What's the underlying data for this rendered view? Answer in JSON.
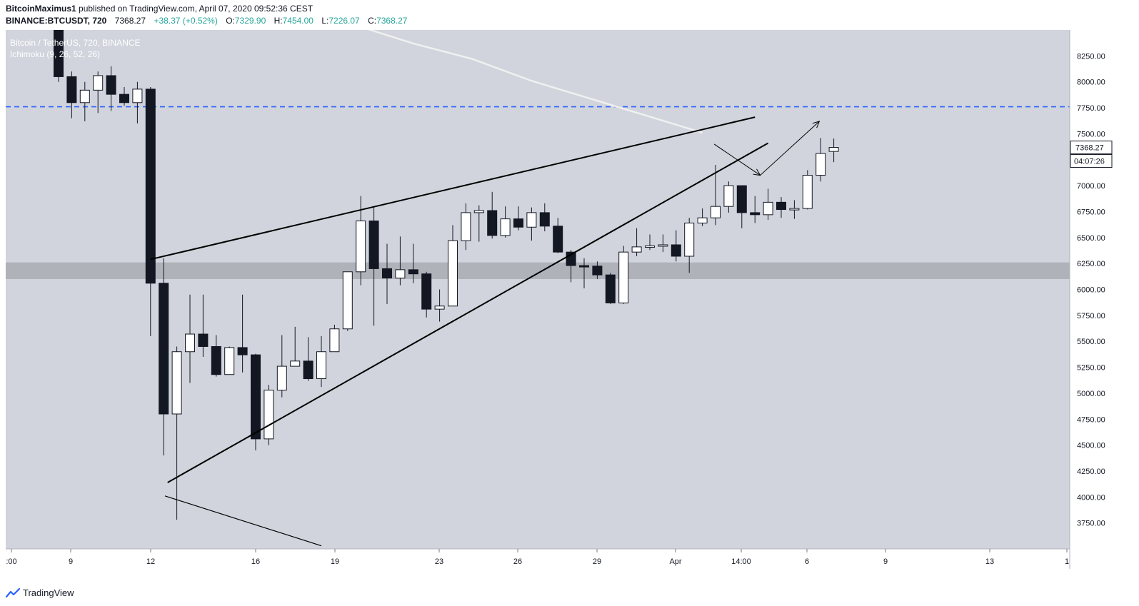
{
  "header": {
    "author": "BitcoinMaximus1",
    "published_text": "published on TradingView.com, April 07, 2020 09:52:36 CEST",
    "symbol": "BINANCE:BTCUSDT, 720",
    "last": "7368.27",
    "change": "+38.37 (+0.52%)",
    "o_label": "O:",
    "o_value": "7329.90",
    "h_label": "H:",
    "h_value": "7454.00",
    "l_label": "L:",
    "l_value": "7226.07",
    "c_label": "C:",
    "c_value": "7368.27"
  },
  "overlay": {
    "series_title": "Bitcoin / TetherUS, 720, BINANCE",
    "indicator": "Ichimoku (9, 26, 52, 26)"
  },
  "footer": {
    "brand": "TradingView"
  },
  "chart_data": {
    "type": "candlestick",
    "y_range": [
      3500,
      8500
    ],
    "y_ticks": [
      "8250.00",
      "8000.00",
      "7750.00",
      "7500.00",
      "7250.00",
      "7000.00",
      "6750.00",
      "6500.00",
      "6250.00",
      "6000.00",
      "5750.00",
      "5500.00",
      "5250.00",
      "5000.00",
      "4750.00",
      "4500.00",
      "4250.00",
      "4000.00",
      "3750.00"
    ],
    "x_tick_labels": [
      ":00",
      "9",
      "12",
      "16",
      "19",
      "23",
      "26",
      "29",
      "Apr",
      "14:00",
      "6",
      "9",
      "13",
      "1"
    ],
    "price_label": "7368.27",
    "countdown_label": "04:07:26",
    "colors": {
      "background": "#d1d4dc",
      "up": "#ffffff",
      "down": "#131722",
      "dashed": "#2962ff",
      "zone": "#a9abb3",
      "ma": "#f0f0f0",
      "accent": "#26a69a"
    },
    "resistance_dashed": 7760,
    "support_zone": [
      6100,
      6260
    ],
    "candles": [
      {
        "o": 8700,
        "h": 8800,
        "l": 8000,
        "c": 8050
      },
      {
        "o": 8050,
        "h": 8100,
        "l": 7650,
        "c": 7800
      },
      {
        "o": 7800,
        "h": 8000,
        "l": 7620,
        "c": 7920
      },
      {
        "o": 7920,
        "h": 8100,
        "l": 7700,
        "c": 8060
      },
      {
        "o": 8060,
        "h": 8150,
        "l": 7720,
        "c": 7880
      },
      {
        "o": 7880,
        "h": 7950,
        "l": 7770,
        "c": 7800
      },
      {
        "o": 7800,
        "h": 8000,
        "l": 7600,
        "c": 7930
      },
      {
        "o": 7930,
        "h": 7950,
        "l": 5550,
        "c": 6060
      },
      {
        "o": 6060,
        "h": 6300,
        "l": 4400,
        "c": 4800
      },
      {
        "o": 4800,
        "h": 5450,
        "l": 3780,
        "c": 5400
      },
      {
        "o": 5400,
        "h": 5950,
        "l": 5100,
        "c": 5570
      },
      {
        "o": 5570,
        "h": 5950,
        "l": 5350,
        "c": 5450
      },
      {
        "o": 5450,
        "h": 5560,
        "l": 5160,
        "c": 5180
      },
      {
        "o": 5180,
        "h": 5450,
        "l": 5180,
        "c": 5440
      },
      {
        "o": 5440,
        "h": 5950,
        "l": 5200,
        "c": 5370
      },
      {
        "o": 5370,
        "h": 5380,
        "l": 4450,
        "c": 4560
      },
      {
        "o": 4560,
        "h": 5080,
        "l": 4500,
        "c": 5030
      },
      {
        "o": 5030,
        "h": 5560,
        "l": 4960,
        "c": 5260
      },
      {
        "o": 5260,
        "h": 5640,
        "l": 5260,
        "c": 5310
      },
      {
        "o": 5310,
        "h": 5540,
        "l": 5120,
        "c": 5140
      },
      {
        "o": 5140,
        "h": 5550,
        "l": 5060,
        "c": 5400
      },
      {
        "o": 5400,
        "h": 5660,
        "l": 5400,
        "c": 5620
      },
      {
        "o": 5620,
        "h": 6150,
        "l": 5600,
        "c": 6170
      },
      {
        "o": 6170,
        "h": 6900,
        "l": 6040,
        "c": 6660
      },
      {
        "o": 6660,
        "h": 6790,
        "l": 5650,
        "c": 6200
      },
      {
        "o": 6200,
        "h": 6440,
        "l": 5860,
        "c": 6110
      },
      {
        "o": 6110,
        "h": 6510,
        "l": 6040,
        "c": 6190
      },
      {
        "o": 6190,
        "h": 6440,
        "l": 6060,
        "c": 6150
      },
      {
        "o": 6150,
        "h": 6170,
        "l": 5730,
        "c": 5810
      },
      {
        "o": 5810,
        "h": 6000,
        "l": 5690,
        "c": 5840
      },
      {
        "o": 5840,
        "h": 6620,
        "l": 5840,
        "c": 6470
      },
      {
        "o": 6470,
        "h": 6830,
        "l": 6380,
        "c": 6740
      },
      {
        "o": 6740,
        "h": 6810,
        "l": 6460,
        "c": 6760
      },
      {
        "o": 6760,
        "h": 6940,
        "l": 6490,
        "c": 6520
      },
      {
        "o": 6520,
        "h": 6800,
        "l": 6500,
        "c": 6680
      },
      {
        "o": 6680,
        "h": 6800,
        "l": 6570,
        "c": 6600
      },
      {
        "o": 6600,
        "h": 6790,
        "l": 6470,
        "c": 6740
      },
      {
        "o": 6740,
        "h": 6830,
        "l": 6560,
        "c": 6610
      },
      {
        "o": 6610,
        "h": 6690,
        "l": 6350,
        "c": 6360
      },
      {
        "o": 6360,
        "h": 6380,
        "l": 6070,
        "c": 6230
      },
      {
        "o": 6230,
        "h": 6300,
        "l": 6010,
        "c": 6225
      },
      {
        "o": 6225,
        "h": 6270,
        "l": 6100,
        "c": 6140
      },
      {
        "o": 6140,
        "h": 6160,
        "l": 5860,
        "c": 5870
      },
      {
        "o": 5870,
        "h": 6420,
        "l": 5860,
        "c": 6360
      },
      {
        "o": 6360,
        "h": 6590,
        "l": 6320,
        "c": 6410
      },
      {
        "o": 6410,
        "h": 6530,
        "l": 6380,
        "c": 6420
      },
      {
        "o": 6420,
        "h": 6530,
        "l": 6360,
        "c": 6430
      },
      {
        "o": 6430,
        "h": 6570,
        "l": 6270,
        "c": 6320
      },
      {
        "o": 6320,
        "h": 6690,
        "l": 6160,
        "c": 6640
      },
      {
        "o": 6640,
        "h": 6780,
        "l": 6610,
        "c": 6690
      },
      {
        "o": 6690,
        "h": 7200,
        "l": 6620,
        "c": 6800
      },
      {
        "o": 6800,
        "h": 7040,
        "l": 6740,
        "c": 7000
      },
      {
        "o": 7000,
        "h": 7000,
        "l": 6590,
        "c": 6740
      },
      {
        "o": 6740,
        "h": 6900,
        "l": 6640,
        "c": 6720
      },
      {
        "o": 6720,
        "h": 6970,
        "l": 6670,
        "c": 6840
      },
      {
        "o": 6840,
        "h": 6890,
        "l": 6690,
        "c": 6770
      },
      {
        "o": 6770,
        "h": 6860,
        "l": 6680,
        "c": 6780
      },
      {
        "o": 6780,
        "h": 7150,
        "l": 6770,
        "c": 7100
      },
      {
        "o": 7100,
        "h": 7460,
        "l": 7040,
        "c": 7310
      },
      {
        "o": 7329.9,
        "h": 7454,
        "l": 7226.07,
        "c": 7368.27
      }
    ],
    "moving_average": [
      [
        22.5,
        8550
      ],
      [
        27,
        8370
      ],
      [
        31.5,
        8220
      ],
      [
        36,
        8010
      ],
      [
        42,
        7780
      ],
      [
        49,
        7510
      ]
    ],
    "trendlines": [
      {
        "style": "thick",
        "from": [
          7,
          6290
        ],
        "to": [
          53,
          7660
        ]
      },
      {
        "style": "thick",
        "from": [
          8.3,
          4140
        ],
        "to": [
          54,
          7410
        ]
      },
      {
        "style": "thin",
        "from": [
          8.1,
          4010
        ],
        "to": [
          20,
          3530
        ]
      }
    ],
    "projection": [
      [
        49.9,
        7400
      ],
      [
        53.4,
        7100
      ],
      [
        53.4,
        7100
      ],
      [
        57.9,
        7620
      ]
    ]
  }
}
